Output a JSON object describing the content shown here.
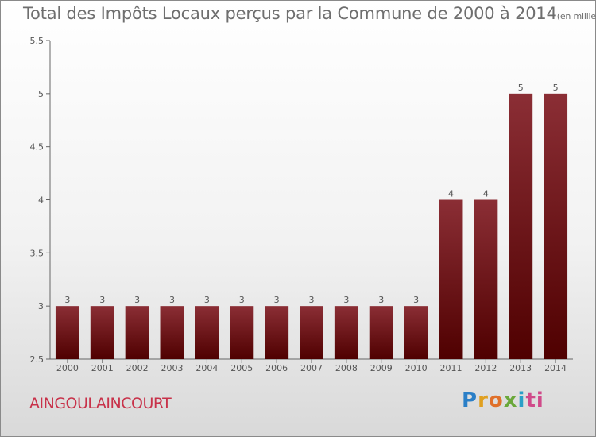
{
  "title": "Total des Impôts Locaux perçus par la Commune de 2000 à 2014",
  "unit": "(en milliers d'€)",
  "commune": "AINGOULAINCOURT",
  "logo": {
    "text": "Proxiti",
    "letters": [
      "P",
      "r",
      "o",
      "x",
      "i",
      "ti"
    ]
  },
  "colors": {
    "bar_top": "#8b2e35",
    "bar_bottom": "#4f0000",
    "axis": "#666666",
    "text": "#555555"
  },
  "chart_data": {
    "type": "bar",
    "categories": [
      "2000",
      "2001",
      "2002",
      "2003",
      "2004",
      "2005",
      "2006",
      "2007",
      "2008",
      "2009",
      "2010",
      "2011",
      "2012",
      "2013",
      "2014"
    ],
    "values": [
      3,
      3,
      3,
      3,
      3,
      3,
      3,
      3,
      3,
      3,
      3,
      4,
      4,
      5,
      5
    ],
    "data_labels": [
      "3",
      "3",
      "3",
      "3",
      "3",
      "3",
      "3",
      "3",
      "3",
      "3",
      "3",
      "4",
      "4",
      "5",
      "5"
    ],
    "ylim": [
      2.5,
      5.5
    ],
    "yticks": [
      2.5,
      3,
      3.5,
      4,
      4.5,
      5,
      5.5
    ],
    "ytick_labels": [
      "2.5",
      "3",
      "3.5",
      "4",
      "4.5",
      "5",
      "5.5"
    ],
    "grid": false,
    "xlabel": "",
    "ylabel": ""
  }
}
